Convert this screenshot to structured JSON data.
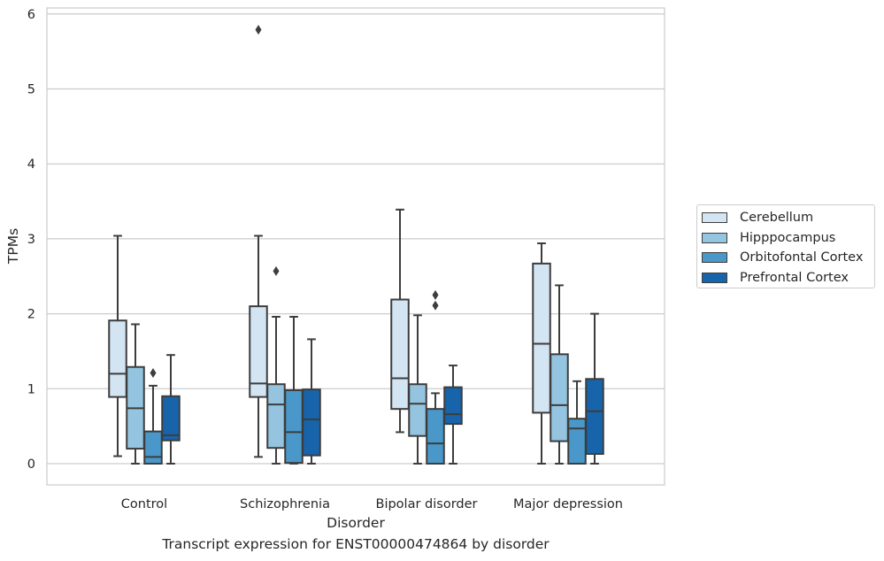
{
  "chart_data": {
    "type": "box",
    "title": "",
    "xlabel": "Disorder",
    "ylabel": "TPMs",
    "caption": "Transcript expression for ENST00000474864 by disorder",
    "ylim": [
      -0.28,
      6.1
    ],
    "yticks": [
      "0",
      "1",
      "2",
      "3",
      "4",
      "5",
      "6"
    ],
    "grid": "horizontal",
    "legend_position": "right",
    "categories": [
      "Control",
      "Schizophrenia",
      "Bipolar disorder",
      "Major depression"
    ],
    "series": [
      {
        "name": "Cerebellum",
        "color": "#d3e4f3",
        "boxes": [
          {
            "whislo": 0.1,
            "q1": 0.89,
            "med": 1.2,
            "q3": 1.91,
            "whishi": 3.04,
            "fliers": []
          },
          {
            "whislo": 0.09,
            "q1": 0.89,
            "med": 1.07,
            "q3": 2.1,
            "whishi": 3.04,
            "fliers": [
              5.79
            ]
          },
          {
            "whislo": 0.42,
            "q1": 0.73,
            "med": 1.14,
            "q3": 2.19,
            "whishi": 3.39,
            "fliers": []
          },
          {
            "whislo": 0.0,
            "q1": 0.68,
            "med": 1.6,
            "q3": 2.67,
            "whishi": 2.94,
            "fliers": []
          }
        ]
      },
      {
        "name": "Hipppocampus",
        "color": "#94c4df",
        "boxes": [
          {
            "whislo": 0.0,
            "q1": 0.2,
            "med": 0.74,
            "q3": 1.29,
            "whishi": 1.86,
            "fliers": []
          },
          {
            "whislo": 0.0,
            "q1": 0.21,
            "med": 0.79,
            "q3": 1.06,
            "whishi": 1.96,
            "fliers": [
              2.57
            ]
          },
          {
            "whislo": 0.0,
            "q1": 0.37,
            "med": 0.8,
            "q3": 1.06,
            "whishi": 1.98,
            "fliers": []
          },
          {
            "whislo": 0.0,
            "q1": 0.3,
            "med": 0.78,
            "q3": 1.46,
            "whishi": 2.38,
            "fliers": []
          }
        ]
      },
      {
        "name": "Orbitofontal Cortex",
        "color": "#4a98c9",
        "boxes": [
          {
            "whislo": 0.0,
            "q1": 0.0,
            "med": 0.09,
            "q3": 0.43,
            "whishi": 1.04,
            "fliers": [
              1.21
            ]
          },
          {
            "whislo": 0.0,
            "q1": 0.01,
            "med": 0.42,
            "q3": 0.98,
            "whishi": 1.96,
            "fliers": []
          },
          {
            "whislo": 0.0,
            "q1": 0.0,
            "med": 0.27,
            "q3": 0.73,
            "whishi": 0.94,
            "fliers": [
              2.11,
              2.25
            ]
          },
          {
            "whislo": 0.0,
            "q1": 0.0,
            "med": 0.47,
            "q3": 0.6,
            "whishi": 1.1,
            "fliers": []
          }
        ]
      },
      {
        "name": "Prefrontal Cortex",
        "color": "#1764ab",
        "boxes": [
          {
            "whislo": 0.0,
            "q1": 0.31,
            "med": 0.38,
            "q3": 0.9,
            "whishi": 1.45,
            "fliers": []
          },
          {
            "whislo": 0.0,
            "q1": 0.11,
            "med": 0.59,
            "q3": 0.99,
            "whishi": 1.66,
            "fliers": []
          },
          {
            "whislo": 0.0,
            "q1": 0.53,
            "med": 0.66,
            "q3": 1.02,
            "whishi": 1.31,
            "fliers": []
          },
          {
            "whislo": 0.0,
            "q1": 0.13,
            "med": 0.7,
            "q3": 1.13,
            "whishi": 2.0,
            "fliers": []
          }
        ]
      }
    ]
  }
}
